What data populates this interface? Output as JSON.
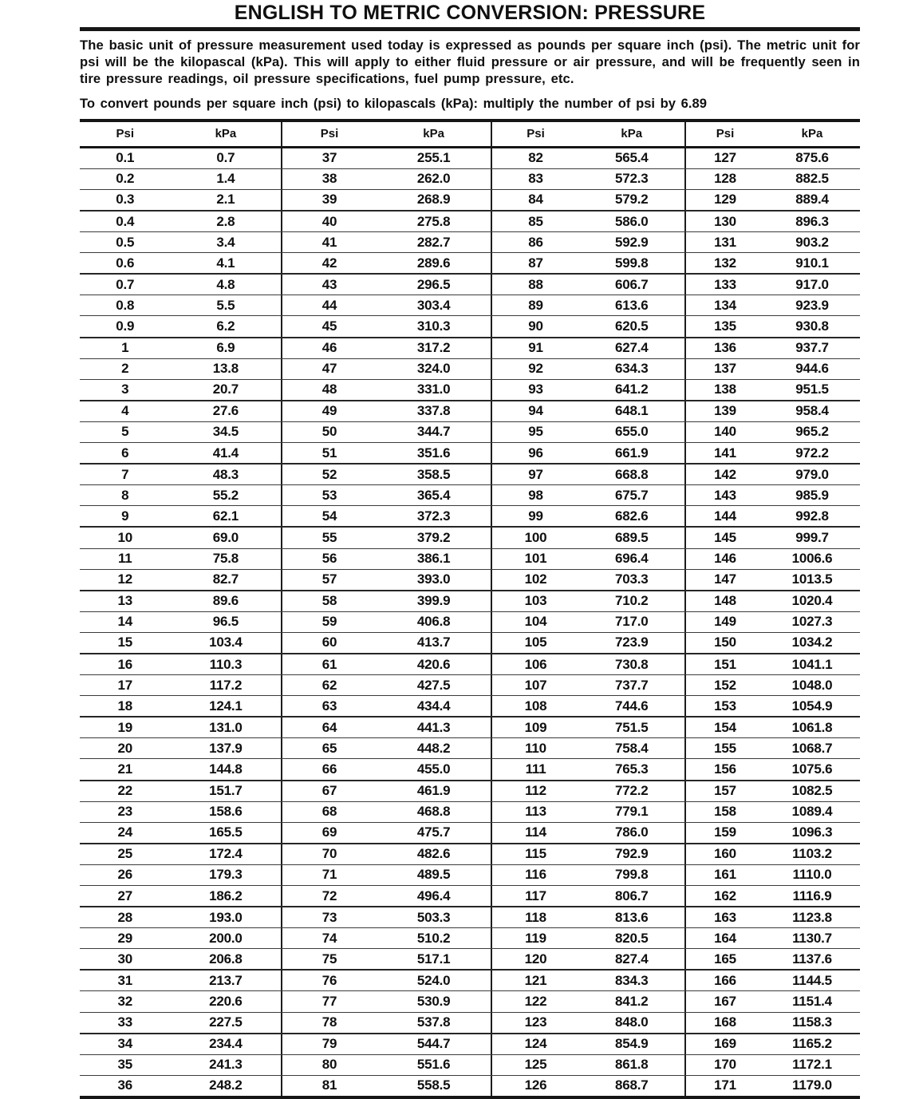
{
  "title": "ENGLISH TO METRIC CONVERSION: PRESSURE",
  "intro": "The basic unit of pressure measurement used today is expressed as pounds per square inch (psi). The metric unit for psi will be the kilopascal (kPa). This will apply to either fluid pressure or air pressure, and will be frequently seen in tire pressure readings, oil pressure specifications, fuel pump pressure, etc.",
  "conversion_note": "To convert pounds per square inch (psi) to kilopascals (kPa): multiply the number of psi by 6.89",
  "table": {
    "pair_headers": [
      {
        "psi": "Psi",
        "kpa": "kPa"
      },
      {
        "psi": "Psi",
        "kpa": "kPa"
      },
      {
        "psi": "Psi",
        "kpa": "kPa"
      },
      {
        "psi": "Psi",
        "kpa": "kPa"
      }
    ],
    "rows": [
      [
        [
          "0.1",
          "0.7"
        ],
        [
          "37",
          "255.1"
        ],
        [
          "82",
          "565.4"
        ],
        [
          "127",
          "875.6"
        ]
      ],
      [
        [
          "0.2",
          "1.4"
        ],
        [
          "38",
          "262.0"
        ],
        [
          "83",
          "572.3"
        ],
        [
          "128",
          "882.5"
        ]
      ],
      [
        [
          "0.3",
          "2.1"
        ],
        [
          "39",
          "268.9"
        ],
        [
          "84",
          "579.2"
        ],
        [
          "129",
          "889.4"
        ]
      ],
      [
        [
          "0.4",
          "2.8"
        ],
        [
          "40",
          "275.8"
        ],
        [
          "85",
          "586.0"
        ],
        [
          "130",
          "896.3"
        ]
      ],
      [
        [
          "0.5",
          "3.4"
        ],
        [
          "41",
          "282.7"
        ],
        [
          "86",
          "592.9"
        ],
        [
          "131",
          "903.2"
        ]
      ],
      [
        [
          "0.6",
          "4.1"
        ],
        [
          "42",
          "289.6"
        ],
        [
          "87",
          "599.8"
        ],
        [
          "132",
          "910.1"
        ]
      ],
      [
        [
          "0.7",
          "4.8"
        ],
        [
          "43",
          "296.5"
        ],
        [
          "88",
          "606.7"
        ],
        [
          "133",
          "917.0"
        ]
      ],
      [
        [
          "0.8",
          "5.5"
        ],
        [
          "44",
          "303.4"
        ],
        [
          "89",
          "613.6"
        ],
        [
          "134",
          "923.9"
        ]
      ],
      [
        [
          "0.9",
          "6.2"
        ],
        [
          "45",
          "310.3"
        ],
        [
          "90",
          "620.5"
        ],
        [
          "135",
          "930.8"
        ]
      ],
      [
        [
          "1",
          "6.9"
        ],
        [
          "46",
          "317.2"
        ],
        [
          "91",
          "627.4"
        ],
        [
          "136",
          "937.7"
        ]
      ],
      [
        [
          "2",
          "13.8"
        ],
        [
          "47",
          "324.0"
        ],
        [
          "92",
          "634.3"
        ],
        [
          "137",
          "944.6"
        ]
      ],
      [
        [
          "3",
          "20.7"
        ],
        [
          "48",
          "331.0"
        ],
        [
          "93",
          "641.2"
        ],
        [
          "138",
          "951.5"
        ]
      ],
      [
        [
          "4",
          "27.6"
        ],
        [
          "49",
          "337.8"
        ],
        [
          "94",
          "648.1"
        ],
        [
          "139",
          "958.4"
        ]
      ],
      [
        [
          "5",
          "34.5"
        ],
        [
          "50",
          "344.7"
        ],
        [
          "95",
          "655.0"
        ],
        [
          "140",
          "965.2"
        ]
      ],
      [
        [
          "6",
          "41.4"
        ],
        [
          "51",
          "351.6"
        ],
        [
          "96",
          "661.9"
        ],
        [
          "141",
          "972.2"
        ]
      ],
      [
        [
          "7",
          "48.3"
        ],
        [
          "52",
          "358.5"
        ],
        [
          "97",
          "668.8"
        ],
        [
          "142",
          "979.0"
        ]
      ],
      [
        [
          "8",
          "55.2"
        ],
        [
          "53",
          "365.4"
        ],
        [
          "98",
          "675.7"
        ],
        [
          "143",
          "985.9"
        ]
      ],
      [
        [
          "9",
          "62.1"
        ],
        [
          "54",
          "372.3"
        ],
        [
          "99",
          "682.6"
        ],
        [
          "144",
          "992.8"
        ]
      ],
      [
        [
          "10",
          "69.0"
        ],
        [
          "55",
          "379.2"
        ],
        [
          "100",
          "689.5"
        ],
        [
          "145",
          "999.7"
        ]
      ],
      [
        [
          "11",
          "75.8"
        ],
        [
          "56",
          "386.1"
        ],
        [
          "101",
          "696.4"
        ],
        [
          "146",
          "1006.6"
        ]
      ],
      [
        [
          "12",
          "82.7"
        ],
        [
          "57",
          "393.0"
        ],
        [
          "102",
          "703.3"
        ],
        [
          "147",
          "1013.5"
        ]
      ],
      [
        [
          "13",
          "89.6"
        ],
        [
          "58",
          "399.9"
        ],
        [
          "103",
          "710.2"
        ],
        [
          "148",
          "1020.4"
        ]
      ],
      [
        [
          "14",
          "96.5"
        ],
        [
          "59",
          "406.8"
        ],
        [
          "104",
          "717.0"
        ],
        [
          "149",
          "1027.3"
        ]
      ],
      [
        [
          "15",
          "103.4"
        ],
        [
          "60",
          "413.7"
        ],
        [
          "105",
          "723.9"
        ],
        [
          "150",
          "1034.2"
        ]
      ],
      [
        [
          "16",
          "110.3"
        ],
        [
          "61",
          "420.6"
        ],
        [
          "106",
          "730.8"
        ],
        [
          "151",
          "1041.1"
        ]
      ],
      [
        [
          "17",
          "117.2"
        ],
        [
          "62",
          "427.5"
        ],
        [
          "107",
          "737.7"
        ],
        [
          "152",
          "1048.0"
        ]
      ],
      [
        [
          "18",
          "124.1"
        ],
        [
          "63",
          "434.4"
        ],
        [
          "108",
          "744.6"
        ],
        [
          "153",
          "1054.9"
        ]
      ],
      [
        [
          "19",
          "131.0"
        ],
        [
          "64",
          "441.3"
        ],
        [
          "109",
          "751.5"
        ],
        [
          "154",
          "1061.8"
        ]
      ],
      [
        [
          "20",
          "137.9"
        ],
        [
          "65",
          "448.2"
        ],
        [
          "110",
          "758.4"
        ],
        [
          "155",
          "1068.7"
        ]
      ],
      [
        [
          "21",
          "144.8"
        ],
        [
          "66",
          "455.0"
        ],
        [
          "111",
          "765.3"
        ],
        [
          "156",
          "1075.6"
        ]
      ],
      [
        [
          "22",
          "151.7"
        ],
        [
          "67",
          "461.9"
        ],
        [
          "112",
          "772.2"
        ],
        [
          "157",
          "1082.5"
        ]
      ],
      [
        [
          "23",
          "158.6"
        ],
        [
          "68",
          "468.8"
        ],
        [
          "113",
          "779.1"
        ],
        [
          "158",
          "1089.4"
        ]
      ],
      [
        [
          "24",
          "165.5"
        ],
        [
          "69",
          "475.7"
        ],
        [
          "114",
          "786.0"
        ],
        [
          "159",
          "1096.3"
        ]
      ],
      [
        [
          "25",
          "172.4"
        ],
        [
          "70",
          "482.6"
        ],
        [
          "115",
          "792.9"
        ],
        [
          "160",
          "1103.2"
        ]
      ],
      [
        [
          "26",
          "179.3"
        ],
        [
          "71",
          "489.5"
        ],
        [
          "116",
          "799.8"
        ],
        [
          "161",
          "1110.0"
        ]
      ],
      [
        [
          "27",
          "186.2"
        ],
        [
          "72",
          "496.4"
        ],
        [
          "117",
          "806.7"
        ],
        [
          "162",
          "1116.9"
        ]
      ],
      [
        [
          "28",
          "193.0"
        ],
        [
          "73",
          "503.3"
        ],
        [
          "118",
          "813.6"
        ],
        [
          "163",
          "1123.8"
        ]
      ],
      [
        [
          "29",
          "200.0"
        ],
        [
          "74",
          "510.2"
        ],
        [
          "119",
          "820.5"
        ],
        [
          "164",
          "1130.7"
        ]
      ],
      [
        [
          "30",
          "206.8"
        ],
        [
          "75",
          "517.1"
        ],
        [
          "120",
          "827.4"
        ],
        [
          "165",
          "1137.6"
        ]
      ],
      [
        [
          "31",
          "213.7"
        ],
        [
          "76",
          "524.0"
        ],
        [
          "121",
          "834.3"
        ],
        [
          "166",
          "1144.5"
        ]
      ],
      [
        [
          "32",
          "220.6"
        ],
        [
          "77",
          "530.9"
        ],
        [
          "122",
          "841.2"
        ],
        [
          "167",
          "1151.4"
        ]
      ],
      [
        [
          "33",
          "227.5"
        ],
        [
          "78",
          "537.8"
        ],
        [
          "123",
          "848.0"
        ],
        [
          "168",
          "1158.3"
        ]
      ],
      [
        [
          "34",
          "234.4"
        ],
        [
          "79",
          "544.7"
        ],
        [
          "124",
          "854.9"
        ],
        [
          "169",
          "1165.2"
        ]
      ],
      [
        [
          "35",
          "241.3"
        ],
        [
          "80",
          "551.6"
        ],
        [
          "125",
          "861.8"
        ],
        [
          "170",
          "1172.1"
        ]
      ],
      [
        [
          "36",
          "248.2"
        ],
        [
          "81",
          "558.5"
        ],
        [
          "126",
          "868.7"
        ],
        [
          "171",
          "1179.0"
        ]
      ]
    ]
  }
}
